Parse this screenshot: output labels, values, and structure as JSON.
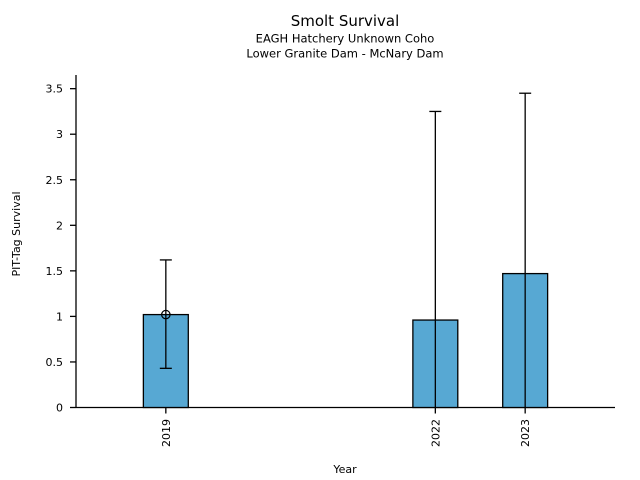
{
  "chart": {
    "title": "Smolt Survival",
    "subtitle_line1": "EAGH Hatchery Unknown Coho",
    "subtitle_line2": "Lower Granite Dam - McNary Dam",
    "xlabel": "Year",
    "ylabel": "PIT-Tag Survival"
  },
  "chart_data": {
    "type": "bar",
    "title": "Smolt Survival",
    "subtitle": [
      "EAGH Hatchery Unknown Coho",
      "Lower Granite Dam - McNary Dam"
    ],
    "xlabel": "Year",
    "ylabel": "PIT-Tag Survival",
    "x": [
      2019,
      2022,
      2023
    ],
    "values": [
      1.02,
      0.96,
      1.47
    ],
    "error_low": [
      0.43,
      0.0,
      0.0
    ],
    "error_high": [
      1.62,
      3.25,
      3.45
    ],
    "marker_points": [
      {
        "x": 2019,
        "y": 1.02,
        "style": "open-circle"
      }
    ],
    "xticks": [
      2019,
      2022,
      2023
    ],
    "xtick_labels": [
      "2019",
      "2022",
      "2023"
    ],
    "yticks": [
      0,
      0.5,
      1,
      1.5,
      2,
      2.5,
      3,
      3.5
    ],
    "ytick_labels": [
      "0",
      "0.5",
      "1",
      "1.5",
      "2",
      "2.5",
      "3",
      "3.5"
    ],
    "xlim": [
      2018,
      2024
    ],
    "ylim": [
      0,
      3.65
    ],
    "bar_width": 0.5,
    "bar_color": "#57a8d3",
    "bar_edge_color": "#000000",
    "error_color": "#000000",
    "axis_color": "#000000",
    "text_color": "#000000",
    "grid": false,
    "legend": null,
    "xtick_rotation": 90
  }
}
